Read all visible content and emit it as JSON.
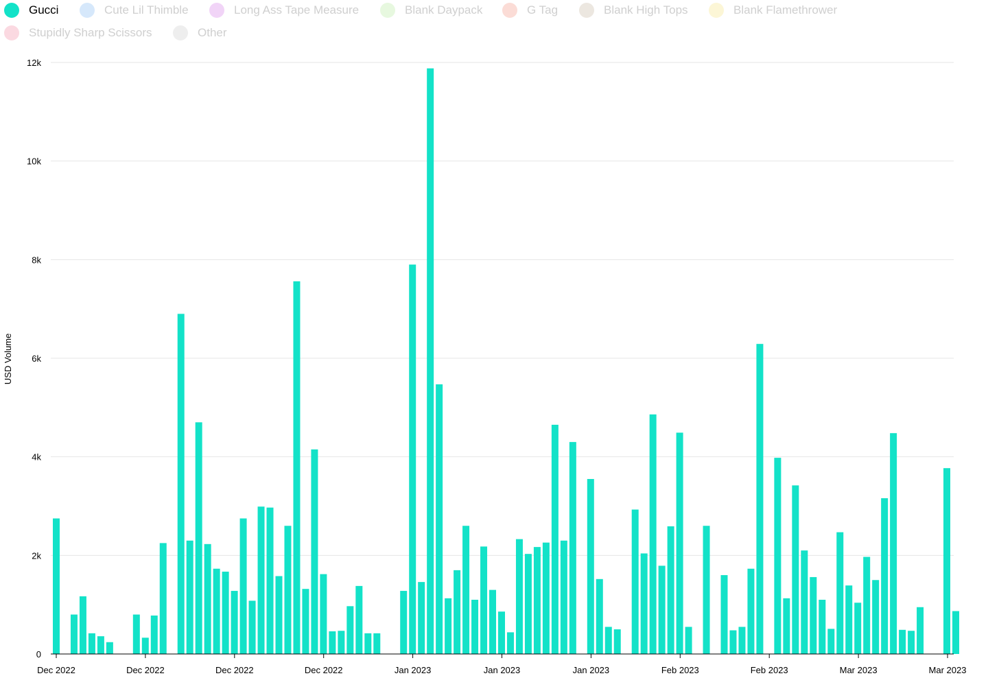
{
  "legend": {
    "items": [
      {
        "label": "Gucci",
        "color": "#13e2c8",
        "active": true
      },
      {
        "label": "Cute Lil Thimble",
        "color": "#d6e8fb",
        "active": false
      },
      {
        "label": "Long Ass Tape Measure",
        "color": "#f1d4f7",
        "active": false
      },
      {
        "label": "Blank Daypack",
        "color": "#e7f8df",
        "active": false
      },
      {
        "label": "G Tag",
        "color": "#fbdcd6",
        "active": false
      },
      {
        "label": "Blank High Tops",
        "color": "#ece7e0",
        "active": false
      },
      {
        "label": "Blank Flamethrower",
        "color": "#fcf6d6",
        "active": false
      },
      {
        "label": "Stupidly Sharp Scissors",
        "color": "#fbd9e1",
        "active": false
      },
      {
        "label": "Other",
        "color": "#eeeeee",
        "active": false
      }
    ]
  },
  "chart_data": {
    "type": "bar",
    "ylabel": "USD Volume",
    "ylim": [
      0,
      12000
    ],
    "yticks": [
      0,
      2000,
      4000,
      6000,
      8000,
      10000,
      12000
    ],
    "ytick_labels": [
      "0",
      "2k",
      "4k",
      "6k",
      "8k",
      "10k",
      "12k"
    ],
    "x_tick_labels": [
      "Dec 2022",
      "Dec 2022",
      "Dec 2022",
      "Dec 2022",
      "Jan 2023",
      "Jan 2023",
      "Jan 2023",
      "Feb 2023",
      "Feb 2023",
      "Mar 2023",
      "Mar 2023"
    ],
    "bar_color": "#13e2c8",
    "grid": true,
    "series": [
      {
        "name": "Gucci",
        "values": [
          2750,
          0,
          800,
          1170,
          420,
          360,
          240,
          0,
          0,
          800,
          330,
          780,
          2250,
          0,
          6900,
          2300,
          4700,
          2230,
          1730,
          1670,
          1280,
          2750,
          1080,
          2990,
          2970,
          1580,
          2600,
          7560,
          1320,
          4150,
          1620,
          460,
          470,
          970,
          1380,
          420,
          420,
          0,
          0,
          1280,
          7900,
          1460,
          11880,
          5470,
          1130,
          1700,
          2600,
          1100,
          2180,
          1300,
          860,
          440,
          2330,
          2030,
          2170,
          2260,
          4650,
          2300,
          4300,
          0,
          3550,
          1520,
          550,
          500,
          0,
          2930,
          2040,
          4860,
          1790,
          2590,
          4490,
          550,
          0,
          2600,
          0,
          1600,
          480,
          550,
          1730,
          6290,
          0,
          3980,
          1130,
          3420,
          2100,
          1560,
          1100,
          510,
          2470,
          1390,
          1040,
          1970,
          1500,
          3160,
          4480,
          490,
          470,
          950,
          0,
          0,
          3770,
          870
        ]
      }
    ]
  }
}
